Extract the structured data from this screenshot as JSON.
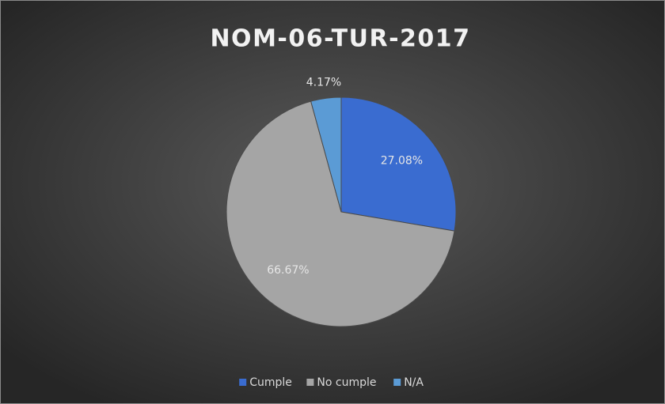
{
  "chart_data": {
    "type": "pie",
    "title": "NOM-06-TUR-2017",
    "categories": [
      "Cumple",
      "No cumple",
      "N/A"
    ],
    "values": [
      27.08,
      66.67,
      4.17
    ],
    "value_labels": [
      "27.08%",
      "66.67%",
      "4.17%"
    ],
    "colors": [
      "#3a6cd0",
      "#a5a5a5",
      "#5b9bd5"
    ],
    "legend": "bottom"
  }
}
